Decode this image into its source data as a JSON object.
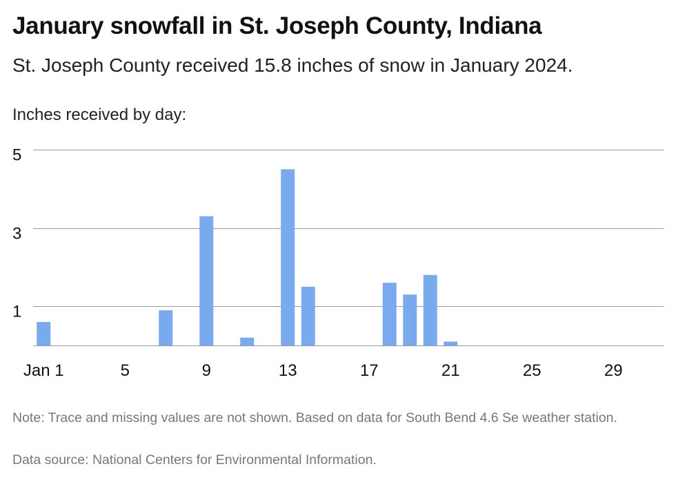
{
  "title": "January snowfall in St. Joseph County, Indiana",
  "subtitle": "St. Joseph County received 15.8 inches of snow in January 2024.",
  "ylabel": "Inches received by day:",
  "note": "Note: Trace and missing values are not shown. Based on data for South Bend 4.6 Se weather station.",
  "source": "Data source: National Centers for Environmental Information.",
  "chart_data": {
    "type": "bar",
    "title": "January snowfall in St. Joseph County, Indiana",
    "ylabel": "Inches received by day:",
    "bar_color": "#7aaaee",
    "grid": true,
    "ylim": [
      0,
      5
    ],
    "yticks": [
      1,
      3,
      5
    ],
    "xlim": [
      1,
      31
    ],
    "xticks": [
      1,
      5,
      9,
      13,
      17,
      21,
      25,
      29
    ],
    "xtick_labels": [
      "Jan 1",
      "5",
      "9",
      "13",
      "17",
      "21",
      "25",
      "29"
    ],
    "x": [
      1,
      7,
      9,
      11,
      13,
      14,
      18,
      19,
      20,
      21
    ],
    "values": [
      0.6,
      0.9,
      3.3,
      0.2,
      4.5,
      1.5,
      1.6,
      1.3,
      1.8,
      0.1
    ]
  }
}
